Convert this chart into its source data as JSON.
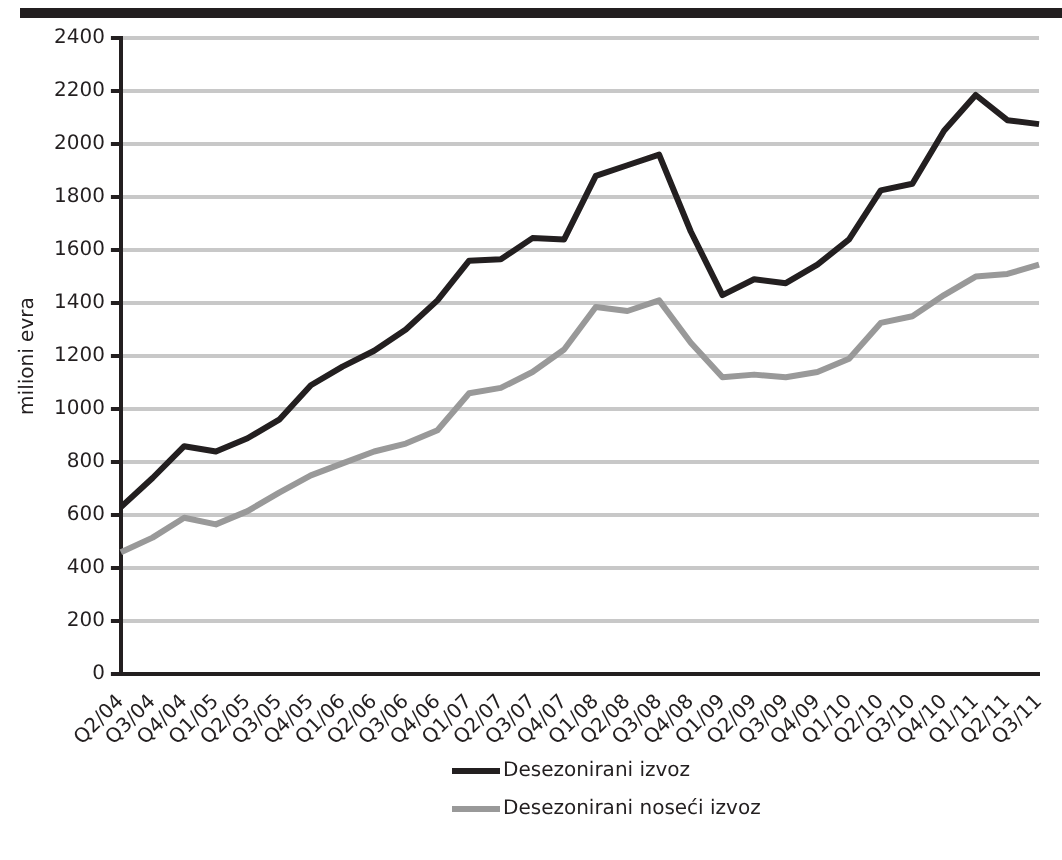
{
  "chart_data": {
    "type": "line",
    "ylabel": "milioni evra",
    "categories": [
      "Q2/04",
      "Q3/04",
      "Q4/04",
      "Q1/05",
      "Q2/05",
      "Q3/05",
      "Q4/05",
      "Q1/06",
      "Q2/06",
      "Q3/06",
      "Q4/06",
      "Q1/07",
      "Q2/07",
      "Q3/07",
      "Q4/07",
      "Q1/08",
      "Q2/08",
      "Q3/08",
      "Q4/08",
      "Q1/09",
      "Q2/09",
      "Q3/09",
      "Q4/09",
      "Q1/10",
      "Q2/10",
      "Q3/10",
      "Q4/10",
      "Q1/11",
      "Q2/11",
      "Q3/11"
    ],
    "series": [
      {
        "name": "Desezonirani izvoz",
        "color": "#231f20",
        "values": [
          630,
          740,
          860,
          840,
          890,
          960,
          1090,
          1160,
          1220,
          1300,
          1410,
          1560,
          1565,
          1645,
          1640,
          1880,
          1920,
          1960,
          1670,
          1430,
          1490,
          1475,
          1545,
          1640,
          1825,
          1850,
          2050,
          2185,
          2090,
          2075
        ]
      },
      {
        "name": "Desezonirani noseći izvoz",
        "color": "#999999",
        "values": [
          460,
          515,
          590,
          565,
          615,
          685,
          750,
          795,
          840,
          870,
          920,
          1060,
          1080,
          1140,
          1225,
          1385,
          1370,
          1410,
          1250,
          1120,
          1130,
          1120,
          1140,
          1190,
          1325,
          1350,
          1430,
          1500,
          1510,
          1545
        ]
      }
    ],
    "ylim": [
      0,
      2400
    ],
    "yticks": [
      0,
      200,
      400,
      600,
      800,
      1000,
      1200,
      1400,
      1600,
      1800,
      2000,
      2200,
      2400
    ],
    "grid": "y",
    "legend": "bottom",
    "marker": "none",
    "line_style": "solid"
  }
}
